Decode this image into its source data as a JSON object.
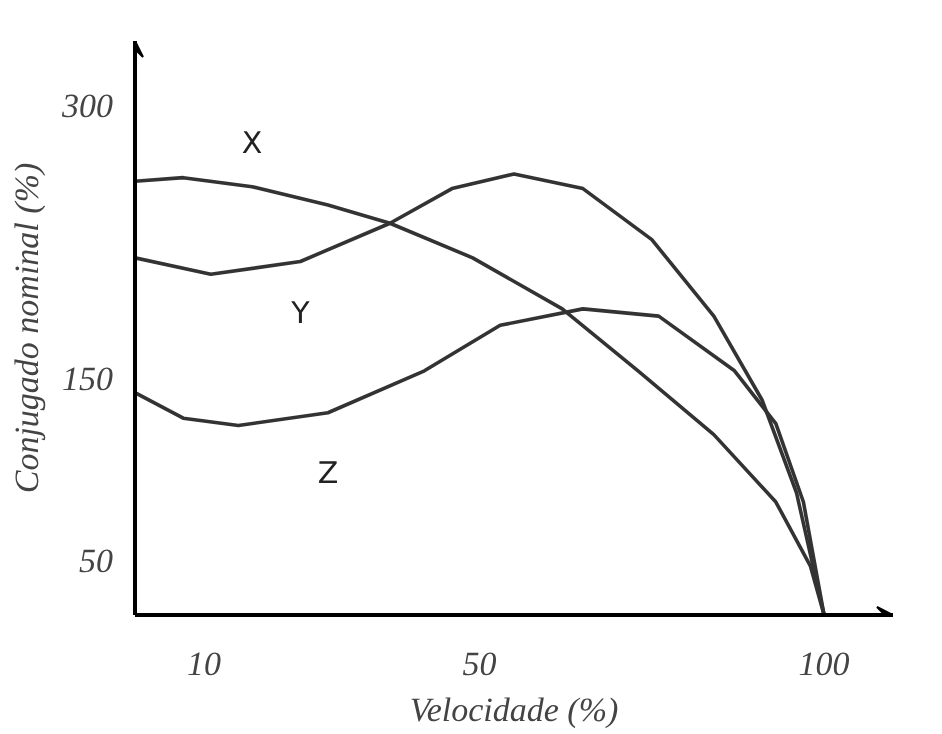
{
  "chart_data": {
    "type": "line",
    "xlabel": "Velocidade (%)",
    "ylabel": "Conjugado nominal (%)",
    "xlim": [
      0,
      110
    ],
    "ylim": [
      20,
      335
    ],
    "xticks": [
      10,
      50,
      100
    ],
    "yticks": [
      50,
      150,
      300
    ],
    "grid": false,
    "legend": false,
    "marker": "none",
    "line_style": "solid",
    "series": [
      {
        "name": "X",
        "color": "#333333",
        "x": [
          0,
          7,
          17,
          28,
          37,
          49,
          62,
          73,
          84,
          93,
          98,
          100
        ],
        "values": [
          258,
          260,
          255,
          245,
          235,
          216,
          188,
          154,
          119,
          82,
          47,
          20
        ]
      },
      {
        "name": "Y",
        "color": "#333333",
        "x": [
          0,
          11,
          24,
          37,
          46,
          55,
          65,
          75,
          84,
          91,
          96,
          100
        ],
        "values": [
          216,
          207,
          214,
          235,
          254,
          262,
          254,
          226,
          184,
          138,
          87,
          20
        ]
      },
      {
        "name": "Z",
        "color": "#333333",
        "x": [
          0,
          7,
          15,
          28,
          42,
          53,
          65,
          76,
          87,
          93,
          97,
          100
        ],
        "values": [
          142,
          128,
          124,
          131,
          154,
          179,
          188,
          184,
          154,
          125,
          82,
          20
        ]
      }
    ]
  }
}
